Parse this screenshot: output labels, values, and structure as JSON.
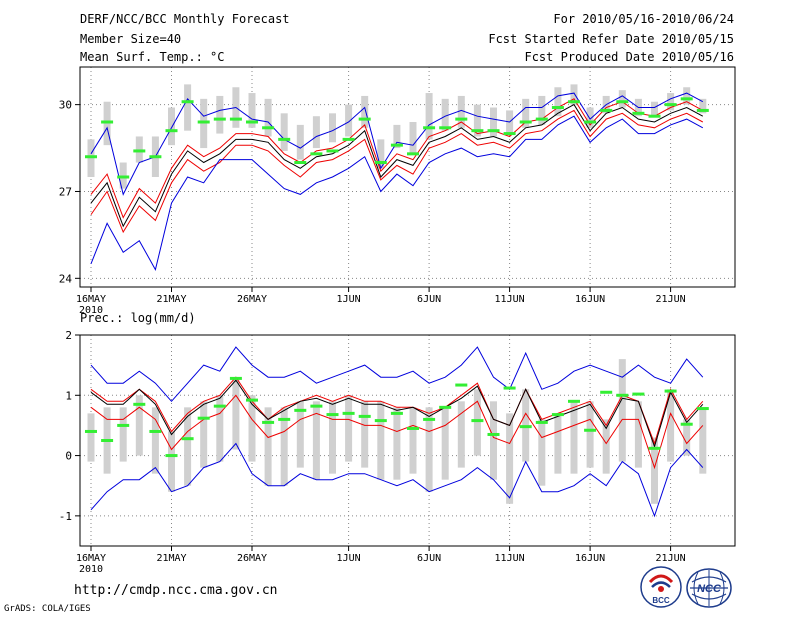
{
  "header": {
    "title": "DERF/NCC/BCC Monthly Forecast",
    "member": "Member Size=40",
    "variable": "Mean Surf. Temp.: °C",
    "period": "For 2010/05/16-2010/06/24",
    "started": "Fcst Started Refer Date 2010/05/15",
    "produced": "Fcst Produced Date 2010/05/16"
  },
  "footer": {
    "url": "http://cmdp.ncc.cma.gov.cn",
    "grads": "GrADS: COLA/IGES"
  },
  "logos": {
    "bcc_text": "BCC",
    "ncc_text": "NCC"
  },
  "colors": {
    "grid": "#888888",
    "box": "#d0d0d0",
    "median": "#33ee33",
    "mean": "#000000",
    "red": "#ee0000",
    "blue": "#0000dd"
  },
  "chart_data": [
    {
      "type": "line",
      "title": "Mean Surf. Temp.: °C",
      "ylim": [
        23.7,
        31.3
      ],
      "yticks": [
        24,
        27,
        30
      ],
      "yticklabels": [
        "24",
        "27",
        "30"
      ],
      "xticks": [
        0,
        5,
        10,
        16,
        21,
        26,
        31,
        36
      ],
      "xticklabels": [
        "16MAY",
        "21MAY",
        "26MAY",
        "1JUN",
        "6JUN",
        "11JUN",
        "16JUN",
        "21JUN"
      ],
      "xyear": "2010",
      "grid": true,
      "series": [
        {
          "name": "max",
          "color": "blue",
          "values": [
            28.3,
            29.2,
            26.9,
            28.0,
            28.2,
            29.2,
            30.2,
            29.6,
            29.8,
            29.9,
            29.5,
            29.4,
            28.8,
            28.5,
            28.9,
            29.1,
            29.4,
            29.9,
            27.8,
            28.7,
            28.6,
            29.3,
            29.6,
            29.8,
            29.6,
            29.5,
            29.4,
            29.9,
            29.9,
            30.3,
            30.4,
            29.5,
            30.0,
            30.3,
            29.9,
            29.9,
            30.2,
            30.4,
            30.1
          ]
        },
        {
          "name": "upper",
          "color": "red",
          "values": [
            26.9,
            27.6,
            26.1,
            27.1,
            26.6,
            27.8,
            28.6,
            28.2,
            28.5,
            29.0,
            29.0,
            28.9,
            28.3,
            28.0,
            28.4,
            28.5,
            28.8,
            29.3,
            27.7,
            28.3,
            28.1,
            28.9,
            29.1,
            29.4,
            29.0,
            29.1,
            28.9,
            29.4,
            29.5,
            29.9,
            30.2,
            29.3,
            29.9,
            30.1,
            29.7,
            29.6,
            29.9,
            30.1,
            29.8
          ]
        },
        {
          "name": "mean",
          "color": "mean",
          "values": [
            26.6,
            27.3,
            25.8,
            26.8,
            26.3,
            27.6,
            28.4,
            28.0,
            28.3,
            28.8,
            28.8,
            28.7,
            28.1,
            27.8,
            28.2,
            28.3,
            28.6,
            29.1,
            27.5,
            28.1,
            27.9,
            28.7,
            28.9,
            29.2,
            28.8,
            28.9,
            28.7,
            29.2,
            29.3,
            29.7,
            30.0,
            29.1,
            29.7,
            29.9,
            29.5,
            29.4,
            29.7,
            29.9,
            29.6
          ]
        },
        {
          "name": "lower",
          "color": "red",
          "values": [
            26.2,
            27.0,
            25.6,
            26.5,
            26.0,
            27.3,
            28.1,
            27.7,
            28.0,
            28.6,
            28.6,
            28.4,
            27.9,
            27.5,
            28.0,
            28.1,
            28.4,
            28.8,
            27.4,
            27.9,
            27.6,
            28.5,
            28.7,
            29.0,
            28.6,
            28.7,
            28.5,
            29.0,
            29.1,
            29.5,
            29.8,
            28.9,
            29.5,
            29.7,
            29.3,
            29.2,
            29.5,
            29.7,
            29.4
          ]
        },
        {
          "name": "min",
          "color": "blue",
          "values": [
            24.5,
            25.9,
            24.9,
            25.3,
            24.3,
            26.6,
            27.5,
            27.3,
            28.1,
            28.1,
            28.1,
            27.6,
            27.1,
            26.9,
            27.3,
            27.5,
            27.8,
            28.2,
            27.0,
            27.6,
            27.2,
            28.0,
            28.3,
            28.5,
            28.2,
            28.3,
            28.2,
            28.8,
            28.8,
            29.3,
            29.6,
            28.7,
            29.2,
            29.5,
            29.0,
            29.0,
            29.3,
            29.5,
            29.2
          ]
        }
      ],
      "boxes": {
        "low": [
          27.5,
          28.6,
          27.1,
          28.0,
          27.5,
          28.6,
          29.1,
          28.5,
          29.0,
          29.2,
          29.2,
          28.9,
          28.4,
          28.1,
          28.5,
          28.7,
          28.9,
          29.2,
          27.8,
          28.5,
          28.3,
          28.8,
          29.1,
          29.2,
          28.9,
          28.9,
          29.0,
          29.2,
          29.3,
          29.6,
          30.0,
          29.2,
          29.7,
          29.9,
          29.6,
          29.6,
          29.8,
          30.0,
          29.7
        ],
        "high": [
          28.8,
          30.1,
          28.0,
          28.9,
          28.9,
          29.9,
          30.7,
          30.2,
          30.3,
          30.6,
          30.4,
          30.2,
          29.7,
          29.3,
          29.6,
          29.7,
          30.0,
          30.3,
          28.8,
          29.3,
          29.4,
          30.4,
          30.2,
          30.3,
          30.0,
          29.9,
          29.8,
          30.2,
          30.3,
          30.6,
          30.7,
          29.9,
          30.3,
          30.5,
          30.2,
          30.1,
          30.4,
          30.6,
          30.2
        ],
        "median": [
          28.2,
          29.4,
          27.5,
          28.4,
          28.2,
          29.1,
          30.1,
          29.4,
          29.5,
          29.5,
          29.4,
          29.2,
          28.8,
          28.0,
          28.3,
          28.4,
          28.8,
          29.5,
          28.0,
          28.6,
          28.3,
          29.2,
          29.2,
          29.5,
          29.1,
          29.1,
          29.0,
          29.4,
          29.5,
          29.9,
          30.1,
          29.4,
          29.8,
          30.1,
          29.7,
          29.6,
          30.0,
          30.2,
          29.8
        ]
      }
    },
    {
      "type": "line",
      "title": "Prec.: log(mm/d)",
      "ylim": [
        -1.5,
        2.0
      ],
      "yticks": [
        -1,
        0,
        1,
        2
      ],
      "yticklabels": [
        "-1",
        "0",
        "1",
        "2"
      ],
      "xticks": [
        0,
        5,
        10,
        16,
        21,
        26,
        31,
        36
      ],
      "xticklabels": [
        "16MAY",
        "21MAY",
        "26MAY",
        "1JUN",
        "6JUN",
        "11JUN",
        "16JUN",
        "21JUN"
      ],
      "xyear": "2010",
      "grid": true,
      "series": [
        {
          "name": "max",
          "color": "blue",
          "values": [
            1.5,
            1.2,
            1.2,
            1.4,
            1.2,
            0.9,
            1.2,
            1.5,
            1.4,
            1.8,
            1.5,
            1.3,
            1.3,
            1.4,
            1.2,
            1.3,
            1.4,
            1.5,
            1.3,
            1.3,
            1.4,
            1.2,
            1.3,
            1.5,
            1.8,
            1.3,
            1.1,
            1.7,
            1.1,
            1.2,
            1.4,
            1.5,
            1.4,
            1.3,
            1.5,
            1.3,
            1.2,
            1.6,
            1.3
          ]
        },
        {
          "name": "upper",
          "color": "red",
          "values": [
            1.1,
            0.9,
            0.9,
            1.1,
            0.9,
            0.4,
            0.7,
            0.9,
            1.0,
            1.3,
            0.9,
            0.6,
            0.8,
            0.9,
            1.0,
            0.9,
            1.0,
            0.9,
            0.9,
            0.8,
            0.8,
            0.7,
            0.8,
            1.0,
            1.2,
            0.6,
            0.5,
            1.1,
            0.6,
            0.7,
            0.8,
            0.9,
            0.5,
            1.0,
            0.9,
            0.2,
            1.1,
            0.6,
            0.9
          ]
        },
        {
          "name": "mean",
          "color": "mean",
          "values": [
            1.05,
            0.85,
            0.85,
            1.1,
            0.85,
            0.35,
            0.65,
            0.85,
            0.95,
            1.25,
            0.85,
            0.6,
            0.75,
            0.9,
            0.95,
            0.85,
            0.95,
            0.85,
            0.85,
            0.75,
            0.8,
            0.65,
            0.8,
            0.95,
            1.15,
            0.6,
            0.5,
            1.1,
            0.55,
            0.65,
            0.75,
            0.85,
            0.45,
            0.95,
            0.9,
            0.15,
            1.05,
            0.55,
            0.85
          ]
        },
        {
          "name": "lower",
          "color": "red",
          "values": [
            0.8,
            0.6,
            0.6,
            0.8,
            0.6,
            0.1,
            0.4,
            0.6,
            0.7,
            1.0,
            0.6,
            0.3,
            0.4,
            0.6,
            0.7,
            0.6,
            0.6,
            0.5,
            0.5,
            0.4,
            0.5,
            0.4,
            0.5,
            0.7,
            0.9,
            0.3,
            0.2,
            0.7,
            0.3,
            0.4,
            0.5,
            0.6,
            0.2,
            0.6,
            0.6,
            -0.2,
            0.7,
            0.2,
            0.5
          ]
        },
        {
          "name": "min",
          "color": "blue",
          "values": [
            -0.9,
            -0.6,
            -0.4,
            -0.4,
            -0.2,
            -0.6,
            -0.5,
            -0.2,
            -0.1,
            0.2,
            -0.3,
            -0.5,
            -0.5,
            -0.3,
            -0.4,
            -0.4,
            -0.3,
            -0.3,
            -0.4,
            -0.5,
            -0.4,
            -0.6,
            -0.5,
            -0.4,
            -0.2,
            -0.4,
            -0.7,
            -0.1,
            -0.6,
            -0.6,
            -0.5,
            -0.3,
            -0.5,
            -0.1,
            -0.3,
            -1.0,
            -0.2,
            0.1,
            -0.2
          ]
        }
      ],
      "boxes": {
        "low": [
          -0.1,
          -0.3,
          -0.1,
          0.0,
          -0.3,
          -0.6,
          -0.5,
          -0.2,
          -0.1,
          0.1,
          -0.1,
          -0.5,
          -0.5,
          -0.2,
          -0.4,
          -0.3,
          -0.1,
          -0.2,
          -0.4,
          -0.4,
          -0.3,
          -0.6,
          -0.4,
          -0.2,
          0.0,
          -0.4,
          -0.8,
          -0.1,
          -0.5,
          -0.3,
          -0.3,
          -0.2,
          -0.3,
          -0.1,
          -0.2,
          -0.8,
          -0.1,
          0.0,
          -0.3
        ],
        "high": [
          0.7,
          0.8,
          0.8,
          1.0,
          0.8,
          0.4,
          0.8,
          0.9,
          1.0,
          1.3,
          1.0,
          0.8,
          0.8,
          0.9,
          0.9,
          0.9,
          1.0,
          0.9,
          0.9,
          0.8,
          0.8,
          0.8,
          0.8,
          0.9,
          1.1,
          0.9,
          0.7,
          1.1,
          0.6,
          0.7,
          0.9,
          0.9,
          0.6,
          1.6,
          0.9,
          0.3,
          1.1,
          0.6,
          0.8
        ],
        "median": [
          0.4,
          0.25,
          0.5,
          0.85,
          0.4,
          0.0,
          0.28,
          0.62,
          0.82,
          1.28,
          0.92,
          0.55,
          0.6,
          0.75,
          0.82,
          0.68,
          0.7,
          0.65,
          0.58,
          0.7,
          0.45,
          0.6,
          0.8,
          1.17,
          0.58,
          0.35,
          1.12,
          0.48,
          0.55,
          0.68,
          0.9,
          0.42,
          1.05,
          1.0,
          1.02,
          0.12,
          1.07,
          0.52,
          0.78
        ]
      }
    }
  ]
}
